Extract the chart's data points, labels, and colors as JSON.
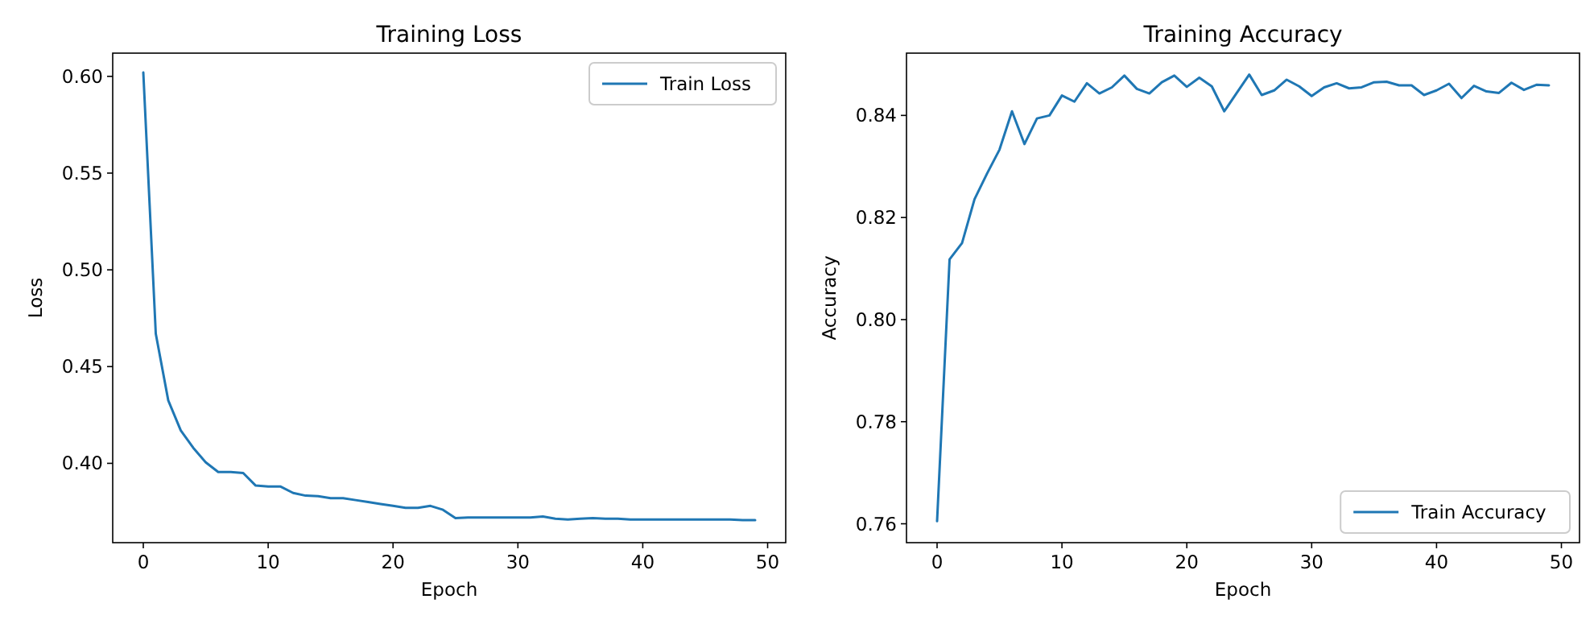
{
  "chart_data": [
    {
      "type": "line",
      "title": "Training Loss",
      "xlabel": "Epoch",
      "ylabel": "Loss",
      "legend": "top right",
      "x": [
        0,
        1,
        2,
        3,
        4,
        5,
        6,
        7,
        8,
        9,
        10,
        11,
        12,
        13,
        14,
        15,
        16,
        17,
        18,
        19,
        20,
        21,
        22,
        23,
        24,
        25,
        26,
        27,
        28,
        29,
        30,
        31,
        32,
        33,
        34,
        35,
        36,
        37,
        38,
        39,
        40,
        41,
        42,
        43,
        44,
        45,
        46,
        47,
        48,
        49
      ],
      "series": [
        {
          "name": "Train Loss",
          "color": "#1f77b4",
          "values": [
            0.602,
            0.467,
            0.4325,
            0.417,
            0.408,
            0.4005,
            0.3955,
            0.3955,
            0.395,
            0.3885,
            0.388,
            0.388,
            0.3847,
            0.3833,
            0.383,
            0.382,
            0.382,
            0.381,
            0.38,
            0.379,
            0.378,
            0.377,
            0.377,
            0.378,
            0.376,
            0.3717,
            0.372,
            0.372,
            0.372,
            0.372,
            0.372,
            0.372,
            0.3725,
            0.3714,
            0.371,
            0.3714,
            0.3717,
            0.3714,
            0.3714,
            0.371,
            0.371,
            0.371,
            0.371,
            0.371,
            0.371,
            0.371,
            0.371,
            0.371,
            0.3707,
            0.3706
          ]
        }
      ],
      "xlim": [
        -2.45,
        51.45
      ],
      "xticks": [
        0,
        10,
        20,
        30,
        40,
        50
      ],
      "ylim": [
        0.359,
        0.612
      ],
      "yticks": [
        {
          "value": 0.4,
          "label": "0.40"
        },
        0.45,
        {
          "value": 0.5,
          "label": "0.50"
        },
        0.55,
        {
          "value": 0.6,
          "label": "0.60"
        }
      ]
    },
    {
      "type": "line",
      "title": "Training Accuracy",
      "xlabel": "Epoch",
      "ylabel": "Accuracy",
      "legend": "bottom right",
      "x": [
        0,
        1,
        2,
        3,
        4,
        5,
        6,
        7,
        8,
        9,
        10,
        11,
        12,
        13,
        14,
        15,
        16,
        17,
        18,
        19,
        20,
        21,
        22,
        23,
        24,
        25,
        26,
        27,
        28,
        29,
        30,
        31,
        32,
        33,
        34,
        35,
        36,
        37,
        38,
        39,
        40,
        41,
        42,
        43,
        44,
        45,
        46,
        47,
        48,
        49
      ],
      "series": [
        {
          "name": "Train Accuracy",
          "color": "#1f77b4",
          "values": [
            0.7605,
            0.8118,
            0.815,
            0.8236,
            0.8286,
            0.8333,
            0.8408,
            0.8344,
            0.8394,
            0.84,
            0.8439,
            0.8427,
            0.8463,
            0.8443,
            0.8455,
            0.8478,
            0.8452,
            0.8443,
            0.8465,
            0.8478,
            0.8456,
            0.8474,
            0.8457,
            0.8408,
            0.8444,
            0.848,
            0.844,
            0.8449,
            0.847,
            0.8457,
            0.8438,
            0.8455,
            0.8463,
            0.8453,
            0.8455,
            0.8465,
            0.8466,
            0.8459,
            0.8459,
            0.844,
            0.8449,
            0.8462,
            0.8434,
            0.8458,
            0.8447,
            0.8444,
            0.8464,
            0.845,
            0.846,
            0.8459
          ]
        }
      ],
      "xlim": [
        -2.45,
        51.45
      ],
      "xticks": [
        0,
        10,
        20,
        30,
        40,
        50
      ],
      "ylim": [
        0.7563,
        0.8522
      ],
      "yticks": [
        0.76,
        0.78,
        {
          "value": 0.8,
          "label": "0.80"
        },
        0.82,
        0.84
      ]
    }
  ]
}
